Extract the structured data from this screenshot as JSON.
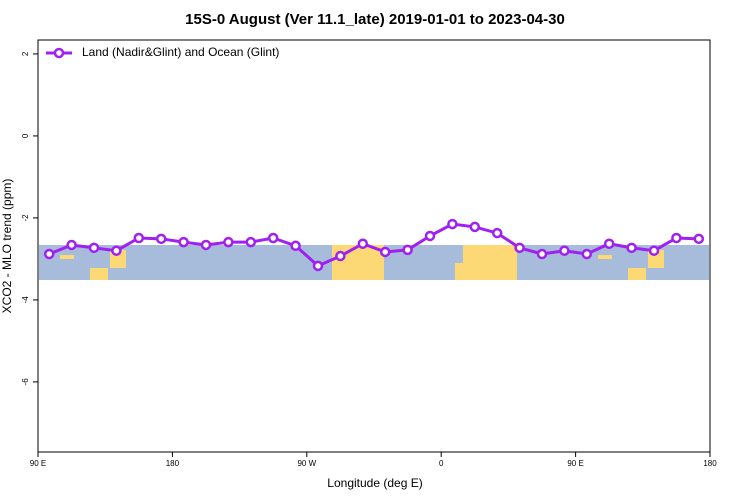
{
  "chart_data": {
    "type": "line",
    "title": "15S-0 August (Ver 11.1_late)   2019-01-01 to 2023-04-30",
    "x_label": "Longitude (deg E)",
    "y_label": "XCO2 - MLO trend (ppm)",
    "x": [
      97.5,
      112.5,
      127.5,
      142.5,
      157.5,
      172.5,
      187.5,
      202.5,
      217.5,
      232.5,
      247.5,
      262.5,
      277.5,
      292.5,
      307.5,
      322.5,
      337.5,
      352.5,
      367.5,
      382.5,
      397.5,
      412.5,
      427.5,
      442.5,
      457.5,
      472.5,
      487.5,
      502.5,
      517.5,
      532.5
    ],
    "series": [
      {
        "name": "Land (Nadir&Glint) and Ocean (Glint)",
        "color": "#a020f0",
        "values": [
          -2.88,
          -2.66,
          -2.73,
          -2.8,
          -2.49,
          -2.51,
          -2.59,
          -2.66,
          -2.59,
          -2.59,
          -2.49,
          -2.68,
          -3.17,
          -2.93,
          -2.63,
          -2.83,
          -2.78,
          -2.44,
          -2.15,
          -2.22,
          -2.37,
          -2.73,
          -2.88,
          -2.8,
          -2.88,
          -2.63,
          -2.73,
          -2.8,
          -2.49,
          -2.51
        ]
      }
    ],
    "xlim": [
      90,
      540
    ],
    "xticks": [
      {
        "value": 90,
        "label": "90 E"
      },
      180,
      {
        "value": 270,
        "label": "90 W"
      },
      {
        "value": 360,
        "label": "0"
      },
      {
        "value": 450,
        "label": "90 E"
      },
      {
        "value": 540,
        "label": "180"
      }
    ],
    "ylim": [
      -7.71,
      2.34
    ],
    "yticks": [
      -6,
      -4,
      -2,
      0,
      2
    ],
    "legend": "top-left"
  }
}
